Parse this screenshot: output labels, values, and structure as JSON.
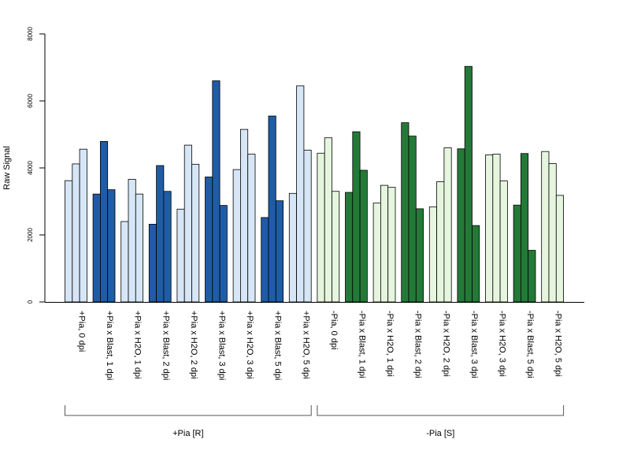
{
  "chart_data": {
    "type": "bar",
    "ylabel": "Raw Signal",
    "ylim": [
      0,
      8000
    ],
    "yticks": [
      "0",
      "2000",
      "4000",
      "6000",
      "8000"
    ],
    "grid": false,
    "legend": "none",
    "categories": [
      "+Pia, 0 dpi",
      "+Pia x Blast, 1 dpi",
      "+Pia x H2O, 1 dpi",
      "+Pia x Blast, 2 dpi",
      "+Pia x H2O, 2 dpi",
      "+Pia x Blast, 3 dpi",
      "+Pia x H2O, 3 dpi",
      "+Pia x Blast, 5 dpi",
      "+Pia x H2O, 5 dpi",
      "-Pia, 0 dpi",
      "-Pia x Blast, 1 dpi",
      "-Pia x H2O, 1 dpi",
      "-Pia x Blast, 2 dpi",
      "-Pia x H2O, 2 dpi",
      "-Pia x Blast, 3 dpi",
      "-Pia x H2O, 3 dpi",
      "-Pia x Blast, 5 dpi",
      "-Pia x H2O, 5 dpi"
    ],
    "replicates": [
      [
        3620,
        4120,
        4560
      ],
      [
        3220,
        4790,
        3350
      ],
      [
        2400,
        3660,
        3220
      ],
      [
        2320,
        4070,
        3300
      ],
      [
        2770,
        4680,
        4110
      ],
      [
        3730,
        6600,
        2880
      ],
      [
        3950,
        5150,
        4410
      ],
      [
        2520,
        5550,
        3020
      ],
      [
        3240,
        6450,
        4530
      ],
      [
        4440,
        4900,
        3300
      ],
      [
        3270,
        5080,
        3930
      ],
      [
        2950,
        3480,
        3420
      ],
      [
        5350,
        4950,
        2780
      ],
      [
        2840,
        3590,
        4600
      ],
      [
        4570,
        7030,
        2280
      ],
      [
        4390,
        4410,
        3610
      ],
      [
        2890,
        4430,
        1540
      ],
      [
        4490,
        4130,
        3180
      ]
    ],
    "bar_colors": [
      "#d6e6f6",
      "#1f5ca7",
      "#d6e6f6",
      "#1f5ca7",
      "#d6e6f6",
      "#1f5ca7",
      "#d6e6f6",
      "#1f5ca7",
      "#d6e6f6",
      "#e6f6de",
      "#237a37",
      "#e6f6de",
      "#237a37",
      "#e6f6de",
      "#237a37",
      "#e6f6de",
      "#237a37",
      "#e6f6de"
    ],
    "groups": [
      {
        "label": "+Pia [R]",
        "from": 0,
        "to": 8
      },
      {
        "label": "-Pia [S]",
        "from": 9,
        "to": 17
      }
    ]
  }
}
